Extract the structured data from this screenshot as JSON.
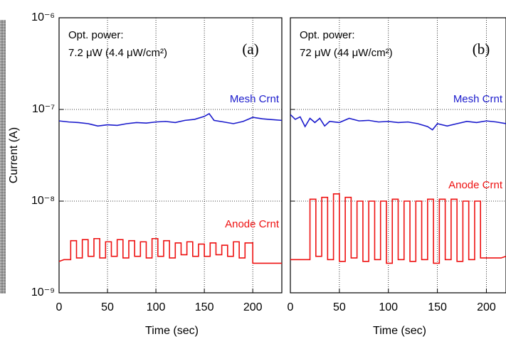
{
  "chart_data": [
    {
      "type": "line",
      "ylog": true,
      "grid": true,
      "ytick_labels": true,
      "ylabel": "Current (A)",
      "xlabel": "Time (sec)",
      "annotations": [
        "Opt. power:",
        "7.2 μW (4.4 μW/cm²)"
      ],
      "panel_label": "(a)",
      "xlim": [
        0,
        230
      ],
      "xticks": [
        0,
        50,
        100,
        150,
        200
      ],
      "ylim": [
        1e-09,
        1e-06
      ],
      "yticks": [
        {
          "value": 1e-09,
          "label": "10⁻⁹"
        },
        {
          "value": 1e-08,
          "label": "10⁻⁸"
        },
        {
          "value": 1e-07,
          "label": "10⁻⁷"
        },
        {
          "value": 1e-06,
          "label": "10⁻⁶"
        }
      ],
      "series": [
        {
          "name": "Mesh Crnt",
          "color": "#1a1acc",
          "x": [
            0,
            10,
            20,
            30,
            40,
            50,
            60,
            70,
            80,
            90,
            100,
            110,
            120,
            130,
            140,
            150,
            155,
            160,
            170,
            180,
            190,
            200,
            210,
            230
          ],
          "values": [
            7.5e-08,
            7.3e-08,
            7.2e-08,
            7e-08,
            6.6e-08,
            6.8e-08,
            6.7e-08,
            7e-08,
            7.2e-08,
            7.1e-08,
            7.3e-08,
            7.4e-08,
            7.2e-08,
            7.6e-08,
            7.8e-08,
            8.4e-08,
            9e-08,
            7.6e-08,
            7.3e-08,
            7e-08,
            7.4e-08,
            8.2e-08,
            7.9e-08,
            7.6e-08
          ]
        },
        {
          "name": "Anode Crnt",
          "color": "#ee1111",
          "x": [
            0,
            5,
            12,
            12,
            18,
            18,
            24,
            24,
            30,
            30,
            36,
            36,
            42,
            42,
            48,
            48,
            54,
            54,
            60,
            60,
            66,
            66,
            72,
            72,
            78,
            78,
            84,
            84,
            90,
            90,
            96,
            96,
            102,
            102,
            108,
            108,
            114,
            114,
            120,
            120,
            126,
            126,
            132,
            132,
            138,
            138,
            144,
            144,
            150,
            150,
            156,
            156,
            162,
            162,
            168,
            168,
            174,
            174,
            180,
            180,
            186,
            186,
            192,
            192,
            200,
            200,
            230
          ],
          "values": [
            2.2e-09,
            2.3e-09,
            2.3e-09,
            3.7e-09,
            3.7e-09,
            2.4e-09,
            2.4e-09,
            3.8e-09,
            3.8e-09,
            2.5e-09,
            2.5e-09,
            3.9e-09,
            3.9e-09,
            2.4e-09,
            2.4e-09,
            3.6e-09,
            3.6e-09,
            2.5e-09,
            2.5e-09,
            3.8e-09,
            3.8e-09,
            2.4e-09,
            2.4e-09,
            3.7e-09,
            3.7e-09,
            2.5e-09,
            2.5e-09,
            3.6e-09,
            3.6e-09,
            2.4e-09,
            2.4e-09,
            3.9e-09,
            3.9e-09,
            2.5e-09,
            2.5e-09,
            3.7e-09,
            3.7e-09,
            2.4e-09,
            2.4e-09,
            3.5e-09,
            3.5e-09,
            2.6e-09,
            2.6e-09,
            3.6e-09,
            3.6e-09,
            2.5e-09,
            2.5e-09,
            3.4e-09,
            3.4e-09,
            2.5e-09,
            2.5e-09,
            3.5e-09,
            3.5e-09,
            2.6e-09,
            2.6e-09,
            3.3e-09,
            3.3e-09,
            2.5e-09,
            2.5e-09,
            3.6e-09,
            3.6e-09,
            2.4e-09,
            2.4e-09,
            3.5e-09,
            3.5e-09,
            2.1e-09,
            2.1e-09
          ]
        }
      ]
    },
    {
      "type": "line",
      "ylog": true,
      "grid": true,
      "ytick_labels": false,
      "xlabel": "Time (sec)",
      "annotations": [
        "Opt. power:",
        "72 μW (44 μW/cm²)"
      ],
      "panel_label": "(b)",
      "xlim": [
        0,
        220
      ],
      "xticks": [
        0,
        50,
        100,
        150,
        200
      ],
      "ylim": [
        1e-09,
        1e-06
      ],
      "yticks": [
        1e-09,
        1e-08,
        1e-07,
        1e-06
      ],
      "series": [
        {
          "name": "Mesh Crnt",
          "color": "#1a1acc",
          "x": [
            0,
            5,
            10,
            15,
            20,
            25,
            30,
            35,
            40,
            50,
            60,
            70,
            80,
            90,
            100,
            110,
            120,
            130,
            140,
            145,
            150,
            160,
            170,
            180,
            190,
            200,
            210,
            220
          ],
          "values": [
            8.8e-08,
            7.8e-08,
            8.3e-08,
            6.5e-08,
            8e-08,
            7.2e-08,
            8e-08,
            6.6e-08,
            7.4e-08,
            7.2e-08,
            8e-08,
            7.5e-08,
            7.6e-08,
            7.3e-08,
            7.4e-08,
            7.2e-08,
            7.3e-08,
            7e-08,
            6.5e-08,
            6e-08,
            7e-08,
            6.6e-08,
            7e-08,
            7.4e-08,
            7.2e-08,
            7.5e-08,
            7.3e-08,
            7e-08
          ]
        },
        {
          "name": "Anode Crnt",
          "color": "#ee1111",
          "x": [
            0,
            20,
            20,
            26,
            26,
            32,
            32,
            38,
            38,
            44,
            44,
            50,
            50,
            56,
            56,
            62,
            62,
            68,
            68,
            74,
            74,
            80,
            80,
            86,
            86,
            92,
            92,
            98,
            98,
            104,
            104,
            110,
            110,
            116,
            116,
            122,
            122,
            128,
            128,
            134,
            134,
            140,
            140,
            146,
            146,
            152,
            152,
            158,
            158,
            164,
            164,
            170,
            170,
            176,
            176,
            182,
            182,
            188,
            188,
            194,
            194,
            215,
            220
          ],
          "values": [
            2.3e-09,
            2.3e-09,
            1.05e-08,
            1.05e-08,
            2.5e-09,
            2.5e-09,
            1.1e-08,
            1.1e-08,
            2.3e-09,
            2.3e-09,
            1.2e-08,
            1.2e-08,
            2.2e-09,
            2.2e-09,
            1.1e-08,
            1.1e-08,
            2.4e-09,
            2.4e-09,
            1e-08,
            1e-08,
            2.2e-09,
            2.2e-09,
            1e-08,
            1e-08,
            2.3e-09,
            2.3e-09,
            1e-08,
            1e-08,
            2.1e-09,
            2.1e-09,
            1.05e-08,
            1.05e-08,
            2.3e-09,
            2.3e-09,
            1e-08,
            1e-08,
            2.2e-09,
            2.2e-09,
            1e-08,
            1e-08,
            2.3e-09,
            2.3e-09,
            1.05e-08,
            1.05e-08,
            2.1e-09,
            2.1e-09,
            1.05e-08,
            1.05e-08,
            2.3e-09,
            2.3e-09,
            1.05e-08,
            1.05e-08,
            2.2e-09,
            2.2e-09,
            1e-08,
            1e-08,
            2.3e-09,
            2.3e-09,
            1e-08,
            1e-08,
            2.4e-09,
            2.4e-09,
            2.5e-09
          ]
        }
      ]
    }
  ]
}
